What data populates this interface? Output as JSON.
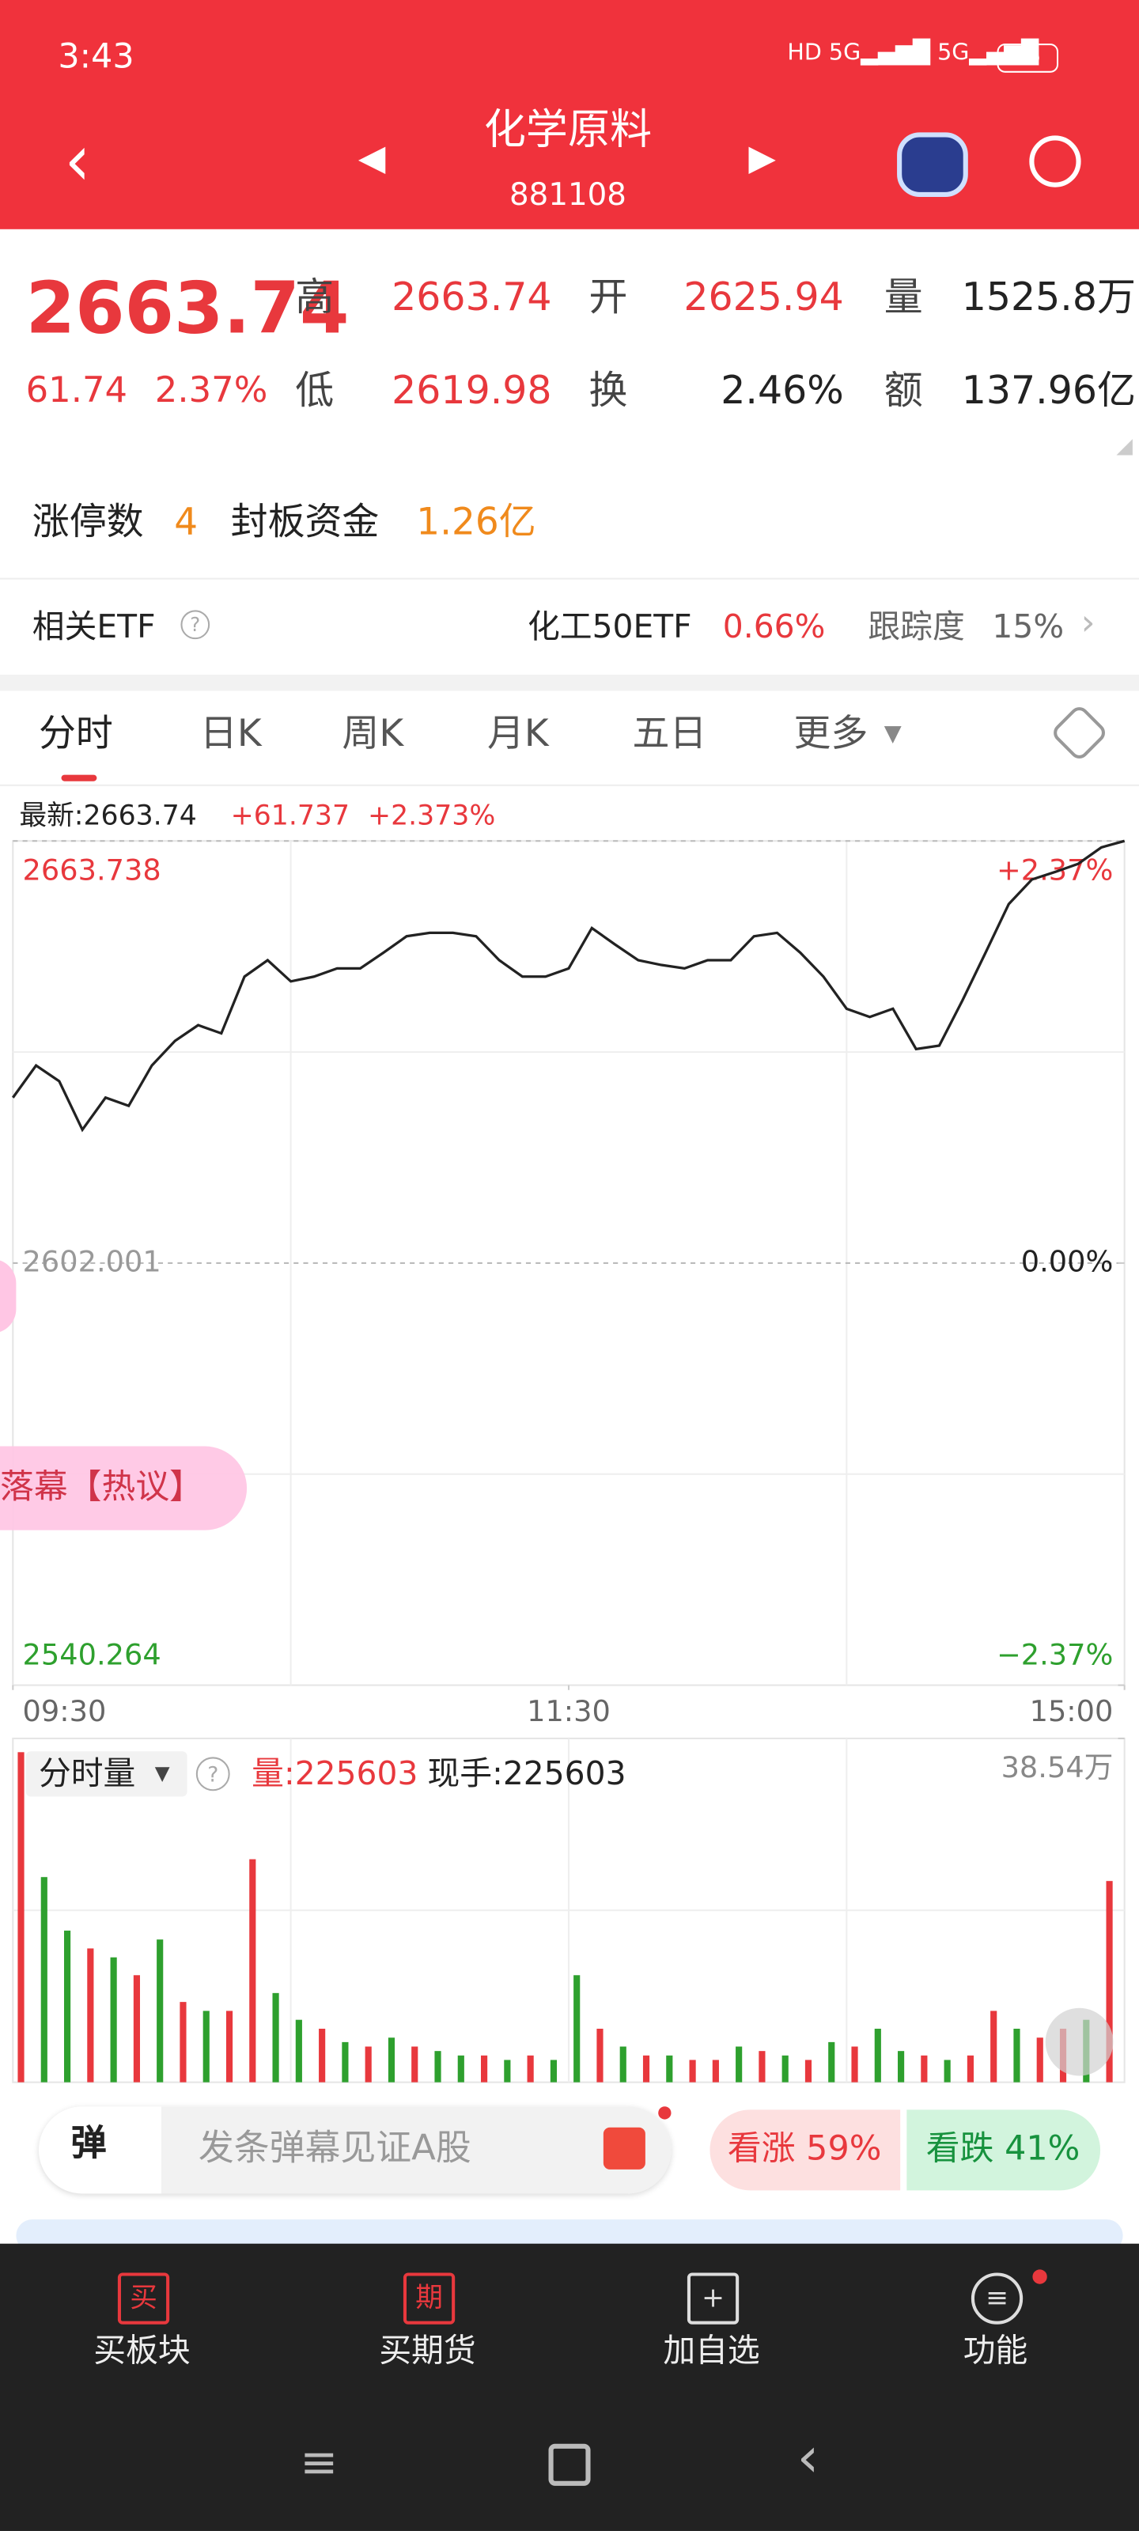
{
  "status": {
    "time": "3:43",
    "battery": "95"
  },
  "header": {
    "title": "化学原料",
    "code": "881108"
  },
  "quote": {
    "price": "2663.74",
    "change": "61.74",
    "pct": "2.37%",
    "fields": [
      {
        "label": "高",
        "value": "2663.74"
      },
      {
        "label": "开",
        "value": "2625.94"
      },
      {
        "label": "量",
        "value": "1525.8万"
      },
      {
        "label": "低",
        "value": "2619.98"
      },
      {
        "label": "换",
        "value": "2.46%"
      },
      {
        "label": "额",
        "value": "137.96亿"
      }
    ]
  },
  "limit": {
    "label": "涨停数",
    "count": "4",
    "fund_label": "封板资金",
    "fund": "1.26亿"
  },
  "etf": {
    "label": "相关ETF",
    "name": "化工50ETF",
    "pct": "0.66%",
    "track_label": "跟踪度",
    "track": "15%"
  },
  "tabs": [
    "分时",
    "日K",
    "周K",
    "月K",
    "五日",
    "更多"
  ],
  "chart_data": [
    {
      "type": "line",
      "latest": "最新:2663.74",
      "change": "+61.737",
      "pct": "+2.373%",
      "x": [
        0,
        5,
        10,
        15,
        20,
        25,
        30,
        35,
        40,
        45,
        50,
        55,
        60,
        65,
        70,
        75,
        80,
        85,
        90,
        95,
        100,
        105,
        110,
        115,
        120,
        125,
        130,
        135,
        140,
        145,
        150,
        155,
        160,
        165,
        170,
        175,
        180,
        185,
        190,
        195,
        200,
        205,
        210,
        215,
        220,
        225,
        230,
        235,
        240
      ],
      "series": [
        {
          "color": "#222222",
          "values": [
            2626.2,
            2630.9,
            2628.6,
            2621.5,
            2626.2,
            2625.0,
            2630.9,
            2634.5,
            2636.8,
            2635.6,
            2643.9,
            2646.3,
            2643.2,
            2643.9,
            2645.1,
            2645.1,
            2647.4,
            2649.8,
            2650.3,
            2650.3,
            2649.8,
            2646.3,
            2643.9,
            2643.9,
            2645.1,
            2651.0,
            2648.6,
            2646.3,
            2645.6,
            2645.1,
            2646.3,
            2646.3,
            2649.8,
            2650.3,
            2647.4,
            2643.9,
            2639.2,
            2638.0,
            2639.2,
            2633.3,
            2633.8,
            2640.4,
            2647.4,
            2654.5,
            2658.1,
            2659.2,
            2660.4,
            2662.8,
            2663.74
          ]
        }
      ],
      "xlim": [
        0,
        240
      ],
      "xticks": [
        {
          "value": 0,
          "label": "09:30"
        },
        {
          "value": 120,
          "label": "11:30"
        },
        {
          "value": 240,
          "label": "15:00"
        }
      ],
      "ylim": [
        2540.264,
        2663.738
      ],
      "yticks": [
        2540.264,
        2602.001,
        2663.738
      ],
      "y2lim": [
        -2.37,
        2.37
      ],
      "y2ticks": [
        {
          "value": -2.37,
          "label": "−2.37%"
        },
        {
          "value": 0,
          "label": "0.00%"
        },
        {
          "value": 2.37,
          "label": "+2.37%"
        }
      ]
    },
    {
      "type": "bar",
      "label": "分时量",
      "vol": "量:225603",
      "hand": "现手:225603",
      "x": [
        0,
        5,
        10,
        15,
        20,
        25,
        30,
        35,
        40,
        45,
        50,
        55,
        60,
        65,
        70,
        75,
        80,
        85,
        90,
        95,
        100,
        105,
        110,
        115,
        120,
        125,
        130,
        135,
        140,
        145,
        150,
        155,
        160,
        165,
        170,
        175,
        180,
        185,
        190,
        195,
        200,
        205,
        210,
        215,
        220,
        225,
        230,
        235
      ],
      "values": [
        370000,
        230000,
        170000,
        150000,
        140000,
        120000,
        160000,
        90000,
        80000,
        80000,
        250000,
        100000,
        70000,
        60000,
        45000,
        40000,
        50000,
        40000,
        35000,
        30000,
        30000,
        25000,
        30000,
        25000,
        120000,
        60000,
        40000,
        30000,
        30000,
        25000,
        25000,
        40000,
        35000,
        30000,
        25000,
        45000,
        40000,
        60000,
        35000,
        30000,
        25000,
        30000,
        80000,
        60000,
        50000,
        60000,
        70000,
        225603
      ],
      "colors": [
        "#e8383d",
        "#2ea02e",
        "#2ea02e",
        "#e8383d",
        "#2ea02e",
        "#e8383d",
        "#2ea02e",
        "#e8383d",
        "#2ea02e",
        "#e8383d",
        "#e8383d",
        "#2ea02e",
        "#2ea02e",
        "#e8383d",
        "#2ea02e",
        "#e8383d",
        "#2ea02e",
        "#e8383d",
        "#2ea02e",
        "#2ea02e",
        "#e8383d",
        "#2ea02e",
        "#e8383d",
        "#2ea02e",
        "#2ea02e",
        "#e8383d",
        "#2ea02e",
        "#e8383d",
        "#2ea02e",
        "#e8383d",
        "#e8383d",
        "#2ea02e",
        "#e8383d",
        "#2ea02e",
        "#e8383d",
        "#2ea02e",
        "#e8383d",
        "#2ea02e",
        "#2ea02e",
        "#e8383d",
        "#2ea02e",
        "#e8383d",
        "#e8383d",
        "#2ea02e",
        "#e8383d",
        "#e8383d",
        "#2ea02e",
        "#e8383d"
      ],
      "xlim": [
        0,
        240
      ],
      "ylim": [
        0,
        385400
      ],
      "yticks": [
        {
          "value": 385400,
          "label": "38.54万"
        }
      ]
    }
  ],
  "overlay": "落幕【热议】",
  "danmu": {
    "badge": "弹",
    "placeholder": "发条弹幕见证A股",
    "up": "看涨 59%",
    "down": "看跌 41%"
  },
  "nav": [
    {
      "icon": "买",
      "label": "买板块"
    },
    {
      "icon": "期",
      "label": "买期货"
    },
    {
      "icon": "+",
      "label": "加自选"
    },
    {
      "icon": "≡",
      "label": "功能"
    }
  ]
}
